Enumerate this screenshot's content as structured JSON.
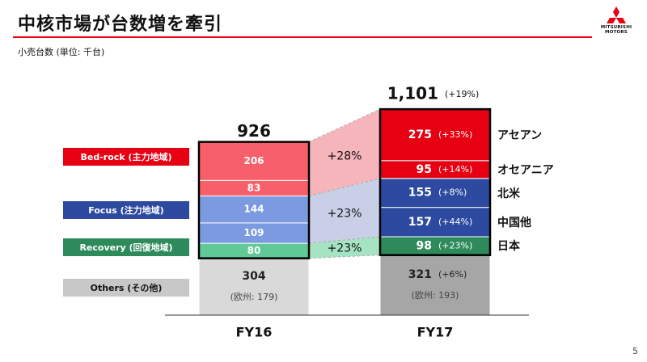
{
  "page": {
    "title": "中核市場が台数増を牽引",
    "subtitle": "小売台数 (単位: 千台)",
    "page_number": "5",
    "logo_text_1": "MITSUBISHI",
    "logo_text_2": "MOTORS"
  },
  "legend": [
    {
      "label": "Bed-rock (主力地域)",
      "color": "#e60012"
    },
    {
      "label": "Focus (注力地域)",
      "color": "#2d4aa0"
    },
    {
      "label": "Recovery (回復地域)",
      "color": "#2e8a5a"
    },
    {
      "label": "Others (その他)",
      "color": "#c8c8c8"
    }
  ],
  "region_labels": [
    "アセアン",
    "オセアニア",
    "北米",
    "中国他",
    "日本"
  ],
  "chart_data": {
    "type": "bar",
    "title": "中核市場が台数増を牽引",
    "ylabel": "小売台数 (単位: 千台)",
    "categories": [
      "FY16",
      "FY17"
    ],
    "totals": [
      "926",
      "1,101"
    ],
    "total_change": [
      "",
      "(+19%)"
    ],
    "series": [
      {
        "name": "Others",
        "group": "Others",
        "color_fy16": "#d9d9d9",
        "color_fy17": "#a6a6a6",
        "values": [
          304,
          321
        ],
        "labels": [
          "304",
          "321"
        ],
        "changes": [
          "",
          "(+6%)"
        ],
        "sub": [
          "(欧州: 179)",
          "(欧州: 193)"
        ]
      },
      {
        "name": "日本",
        "group": "Recovery",
        "color_fy16": "#5fc998",
        "color_fy17": "#2e8a5a",
        "values": [
          80,
          98
        ],
        "labels": [
          "80",
          "98"
        ],
        "changes": [
          "",
          "(+23%)"
        ]
      },
      {
        "name": "中国他",
        "group": "Focus",
        "color_fy16": "#7b9ae0",
        "color_fy17": "#2d4aa0",
        "values": [
          109,
          157
        ],
        "labels": [
          "109",
          "157"
        ],
        "changes": [
          "",
          "(+44%)"
        ]
      },
      {
        "name": "北米",
        "group": "Focus",
        "color_fy16": "#7b9ae0",
        "color_fy17": "#2d4aa0",
        "values": [
          144,
          155
        ],
        "labels": [
          "144",
          "155"
        ],
        "changes": [
          "",
          "(+8%)"
        ]
      },
      {
        "name": "オセアニア",
        "group": "Bed-rock",
        "color_fy16": "#f7606b",
        "color_fy17": "#e60012",
        "values": [
          83,
          95
        ],
        "labels": [
          "83",
          "95"
        ],
        "changes": [
          "",
          "(+14%)"
        ]
      },
      {
        "name": "アセアン",
        "group": "Bed-rock",
        "color_fy16": "#f7606b",
        "color_fy17": "#e60012",
        "values": [
          206,
          275
        ],
        "labels": [
          "206",
          "275"
        ],
        "changes": [
          "",
          "(+33%)"
        ]
      }
    ],
    "group_growth": [
      {
        "group": "Bed-rock",
        "label": "+28%",
        "color": "#f6b4bb"
      },
      {
        "group": "Focus",
        "label": "+23%",
        "color": "#c9cfe6"
      },
      {
        "group": "Recovery",
        "label": "+23%",
        "color": "#a5e3c3"
      }
    ],
    "grid": false
  }
}
